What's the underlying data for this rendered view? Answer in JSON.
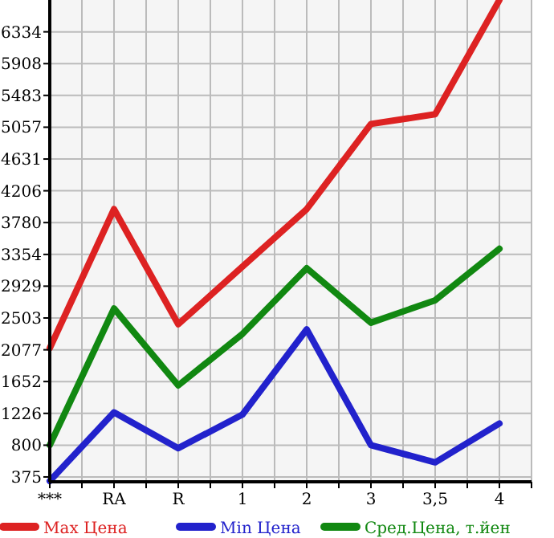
{
  "chart_data": {
    "type": "line",
    "categories": [
      "***",
      "RA",
      "R",
      "1",
      "2",
      "3",
      "3,5",
      "4"
    ],
    "ylim": [
      310,
      6760
    ],
    "yticks": [
      375,
      800,
      1226,
      1652,
      2077,
      2503,
      2929,
      3354,
      3780,
      4206,
      4631,
      5057,
      5483,
      5908,
      6334
    ],
    "grid": true,
    "legend": "bottom",
    "marker": "none",
    "line_style": "solid",
    "series": [
      {
        "name": "Max Цена",
        "color": "#dd2222",
        "values": [
          2100,
          3960,
          2420,
          3190,
          3960,
          5100,
          5230,
          6760
        ]
      },
      {
        "name": "Min Цена",
        "color": "#2222cc",
        "values": [
          320,
          1240,
          760,
          1210,
          2350,
          800,
          570,
          1090
        ]
      },
      {
        "name": "Сред.Цена, т.йен",
        "color": "#118811",
        "values": [
          800,
          2630,
          1600,
          2290,
          3170,
          2440,
          2740,
          3430
        ]
      }
    ]
  }
}
